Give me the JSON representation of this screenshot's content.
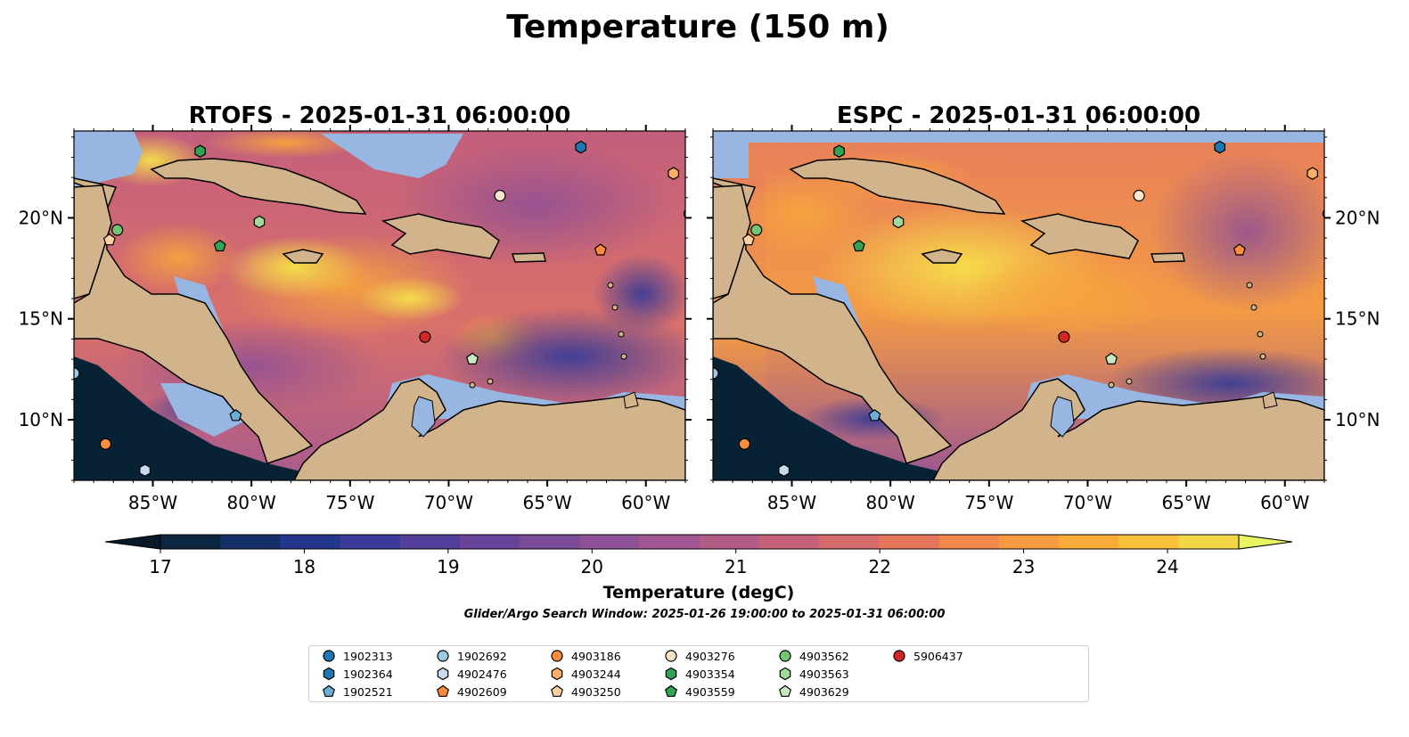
{
  "figure": {
    "suptitle": "Temperature (150 m)",
    "search_window": "Glider/Argo Search Window: 2025-01-26 19:00:00 to 2025-01-31 06:00:00"
  },
  "panels": [
    {
      "id": "rtofs",
      "title": "RTOFS - 2025-01-31 06:00:00"
    },
    {
      "id": "espc",
      "title": "ESPC - 2025-01-31 06:00:00"
    }
  ],
  "map_extent": {
    "lon_min": -89,
    "lon_max": -58,
    "lat_min": 7,
    "lat_max": 24.3
  },
  "lon_ticks": [
    {
      "value": -85,
      "label": "85°W"
    },
    {
      "value": -80,
      "label": "80°W"
    },
    {
      "value": -75,
      "label": "75°W"
    },
    {
      "value": -70,
      "label": "70°W"
    },
    {
      "value": -65,
      "label": "65°W"
    },
    {
      "value": -60,
      "label": "60°W"
    }
  ],
  "lat_ticks": [
    {
      "value": 10,
      "label": "10°N"
    },
    {
      "value": 15,
      "label": "15°N"
    },
    {
      "value": 20,
      "label": "20°N"
    }
  ],
  "colorbar": {
    "label": "Temperature (degC)",
    "vmin": 16.5,
    "vmax": 24.5,
    "ticks": [
      {
        "value": 17,
        "label": "17"
      },
      {
        "value": 18,
        "label": "18"
      },
      {
        "value": 19,
        "label": "19"
      },
      {
        "value": 20,
        "label": "20"
      },
      {
        "value": 21,
        "label": "21"
      },
      {
        "value": 22,
        "label": "22"
      },
      {
        "value": 23,
        "label": "23"
      },
      {
        "value": 24,
        "label": "24"
      }
    ],
    "colors": [
      "#0b2740",
      "#13306a",
      "#24368c",
      "#3a3a9a",
      "#54409c",
      "#68449a",
      "#7b4a98",
      "#8e5096",
      "#a25692",
      "#b45c88",
      "#c6617a",
      "#d86b6c",
      "#e8765c",
      "#f2874e",
      "#f79a40",
      "#f9ad36",
      "#f8c23c",
      "#f4d649"
    ],
    "extend_low": "#061a2a",
    "extend_high": "#e8f560"
  },
  "colors": {
    "land": "#d2b48c",
    "ocean": "#97b6e1",
    "deep_ocean": "#072235",
    "coast": "#000000"
  },
  "floats": [
    {
      "id": "1902313",
      "marker": "circle",
      "color": "#1f77b4",
      "lon": -57.8,
      "lat": 20.2
    },
    {
      "id": "1902364",
      "marker": "hexagon",
      "color": "#1f77b4",
      "lon": -63.3,
      "lat": 23.5
    },
    {
      "id": "1902521",
      "marker": "pentagon",
      "color": "#6aaed6",
      "lon": -80.8,
      "lat": 10.2
    },
    {
      "id": "1902692",
      "marker": "circle",
      "color": "#9ecae1",
      "lon": -89.0,
      "lat": 12.3
    },
    {
      "id": "4902476",
      "marker": "hexagon",
      "color": "#c6dbef",
      "lon": -85.4,
      "lat": 7.5
    },
    {
      "id": "4902609",
      "marker": "pentagon",
      "color": "#fd8d3c",
      "lon": -62.3,
      "lat": 18.4
    },
    {
      "id": "4903186",
      "marker": "circle",
      "color": "#fd8d3c",
      "lon": -87.4,
      "lat": 8.8
    },
    {
      "id": "4903244",
      "marker": "hexagon",
      "color": "#fdae6b",
      "lon": -58.6,
      "lat": 22.2
    },
    {
      "id": "4903250",
      "marker": "pentagon",
      "color": "#fdd0a2",
      "lon": -87.2,
      "lat": 18.9
    },
    {
      "id": "4903276",
      "marker": "circle",
      "color": "#fee6ce",
      "lon": -67.4,
      "lat": 21.1
    },
    {
      "id": "4903354",
      "marker": "hexagon",
      "color": "#31a354",
      "lon": -82.6,
      "lat": 23.3
    },
    {
      "id": "4903559",
      "marker": "pentagon",
      "color": "#31a354",
      "lon": -81.6,
      "lat": 18.6
    },
    {
      "id": "4903562",
      "marker": "circle",
      "color": "#74c476",
      "lon": -86.8,
      "lat": 19.4
    },
    {
      "id": "4903563",
      "marker": "hexagon",
      "color": "#a1d99b",
      "lon": -79.6,
      "lat": 19.8
    },
    {
      "id": "4903629",
      "marker": "pentagon",
      "color": "#c7e9c0",
      "lon": -68.8,
      "lat": 13.0
    },
    {
      "id": "5906437",
      "marker": "circle",
      "color": "#d62728",
      "lon": -71.2,
      "lat": 14.1
    }
  ]
}
